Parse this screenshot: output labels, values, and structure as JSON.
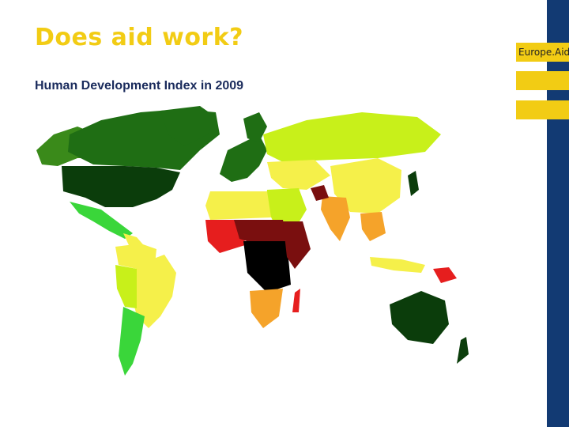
{
  "slide": {
    "title": "Does aid work?",
    "subtitle": "Human Development Index in 2009"
  },
  "branding": {
    "label": "Europe.Aid",
    "accent_color": "#f2cc14",
    "band_color": "#123a73"
  },
  "map": {
    "legend_colors": {
      "very_high": "#0b3d0b",
      "high": "#3a8a1a",
      "upper_medium": "#c8f01a",
      "medium": "#f5f04a",
      "lower_medium": "#f5a32a",
      "low": "#e61e1e",
      "very_low": "#7a0f0f",
      "lowest": "#000000",
      "no_data": "#b3b3b3"
    }
  }
}
